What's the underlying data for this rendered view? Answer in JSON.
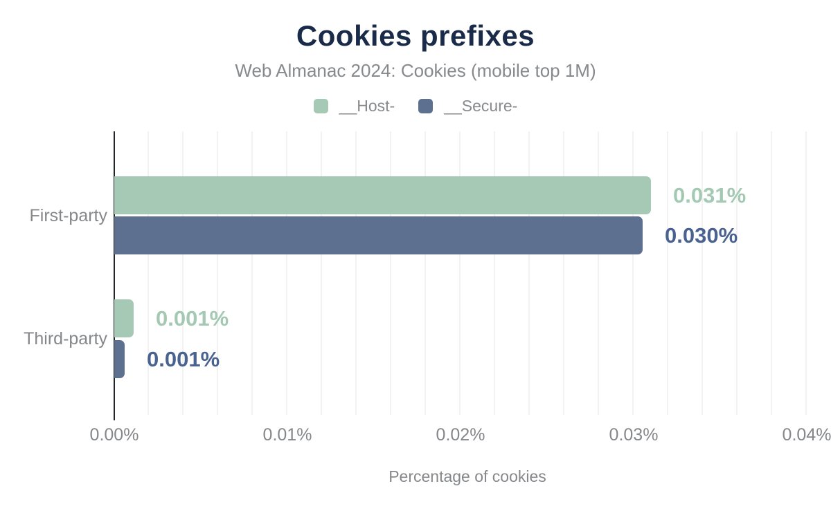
{
  "title": "Cookies prefixes",
  "subtitle": "Web Almanac 2024: Cookies (mobile top 1M)",
  "legend": [
    {
      "label": "__Host-",
      "color": "#a5c9b5"
    },
    {
      "label": "__Secure-",
      "color": "#5e7090"
    }
  ],
  "colors": {
    "title_text": "#1a2b49",
    "muted_text": "#87898c",
    "axis_line": "#212529",
    "gridline": "#f2f2f3",
    "host_bar": "#a5c9b5",
    "secure_bar": "#5e7090",
    "host_value_label": "#a3c9b2",
    "secure_value_label": "#4a628f"
  },
  "xaxis": {
    "title": "Percentage of cookies",
    "ticks": [
      "0.00%",
      "0.01%",
      "0.02%",
      "0.03%",
      "0.04%"
    ]
  },
  "chart_data": {
    "type": "bar",
    "orientation": "horizontal",
    "title": "Cookies prefixes",
    "subtitle": "Web Almanac 2024: Cookies (mobile top 1M)",
    "xlabel": "Percentage of cookies",
    "xlim": [
      0,
      0.04
    ],
    "x_tick_labels": [
      "0.00%",
      "0.01%",
      "0.02%",
      "0.03%",
      "0.04%"
    ],
    "grid": "vertical-light",
    "legend_position": "top",
    "value_unit": "%",
    "categories": [
      "First-party",
      "Third-party"
    ],
    "series": [
      {
        "name": "__Host-",
        "values": [
          0.031,
          0.0011
        ],
        "display_labels": [
          "0.031%",
          "0.001%"
        ]
      },
      {
        "name": "__Secure-",
        "values": [
          0.0305,
          0.0006
        ],
        "display_labels": [
          "0.030%",
          "0.001%"
        ]
      }
    ]
  }
}
